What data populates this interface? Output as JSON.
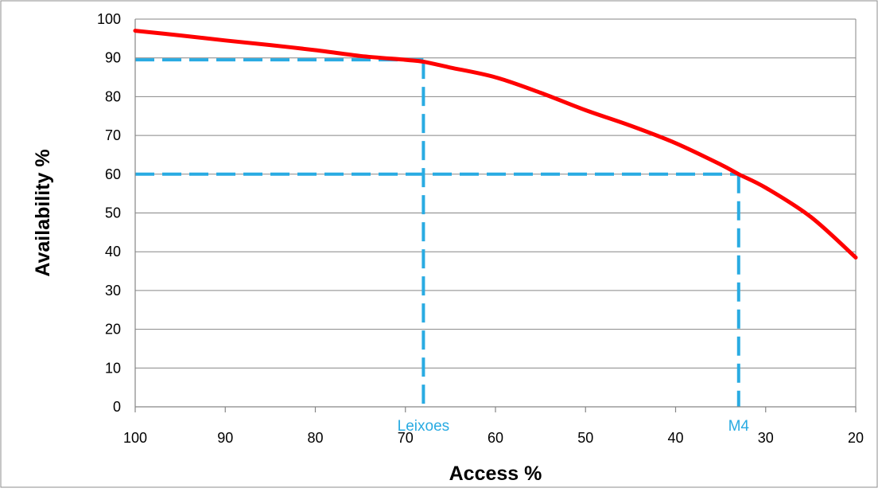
{
  "chart_data": {
    "type": "line",
    "title": "",
    "xlabel": "Access %",
    "ylabel": "Availability %",
    "xlim": [
      100,
      20
    ],
    "ylim": [
      0,
      100
    ],
    "x_reversed": true,
    "x_ticks": [
      100,
      90,
      80,
      70,
      60,
      50,
      40,
      30,
      20
    ],
    "y_ticks": [
      0,
      10,
      20,
      30,
      40,
      50,
      60,
      70,
      80,
      90,
      100
    ],
    "grid": "horizontal",
    "legend": "none",
    "series": [
      {
        "color": "#ff0000",
        "x": [
          100,
          95,
          90,
          85,
          80,
          75,
          70,
          68,
          65,
          60,
          55,
          50,
          45,
          40,
          35,
          33,
          30,
          25,
          20
        ],
        "y": [
          97,
          95.8,
          94.5,
          93.3,
          92,
          90.5,
          89.5,
          89,
          87.5,
          85,
          81,
          76.5,
          72.5,
          68,
          62.5,
          60,
          56.5,
          49,
          38.5
        ]
      }
    ],
    "reference_lines": [
      {
        "label": "Leixoes",
        "x": 68,
        "y": 89.5,
        "color": "#29abe2"
      },
      {
        "label": "M4",
        "x": 33,
        "y": 60,
        "color": "#29abe2"
      }
    ]
  }
}
